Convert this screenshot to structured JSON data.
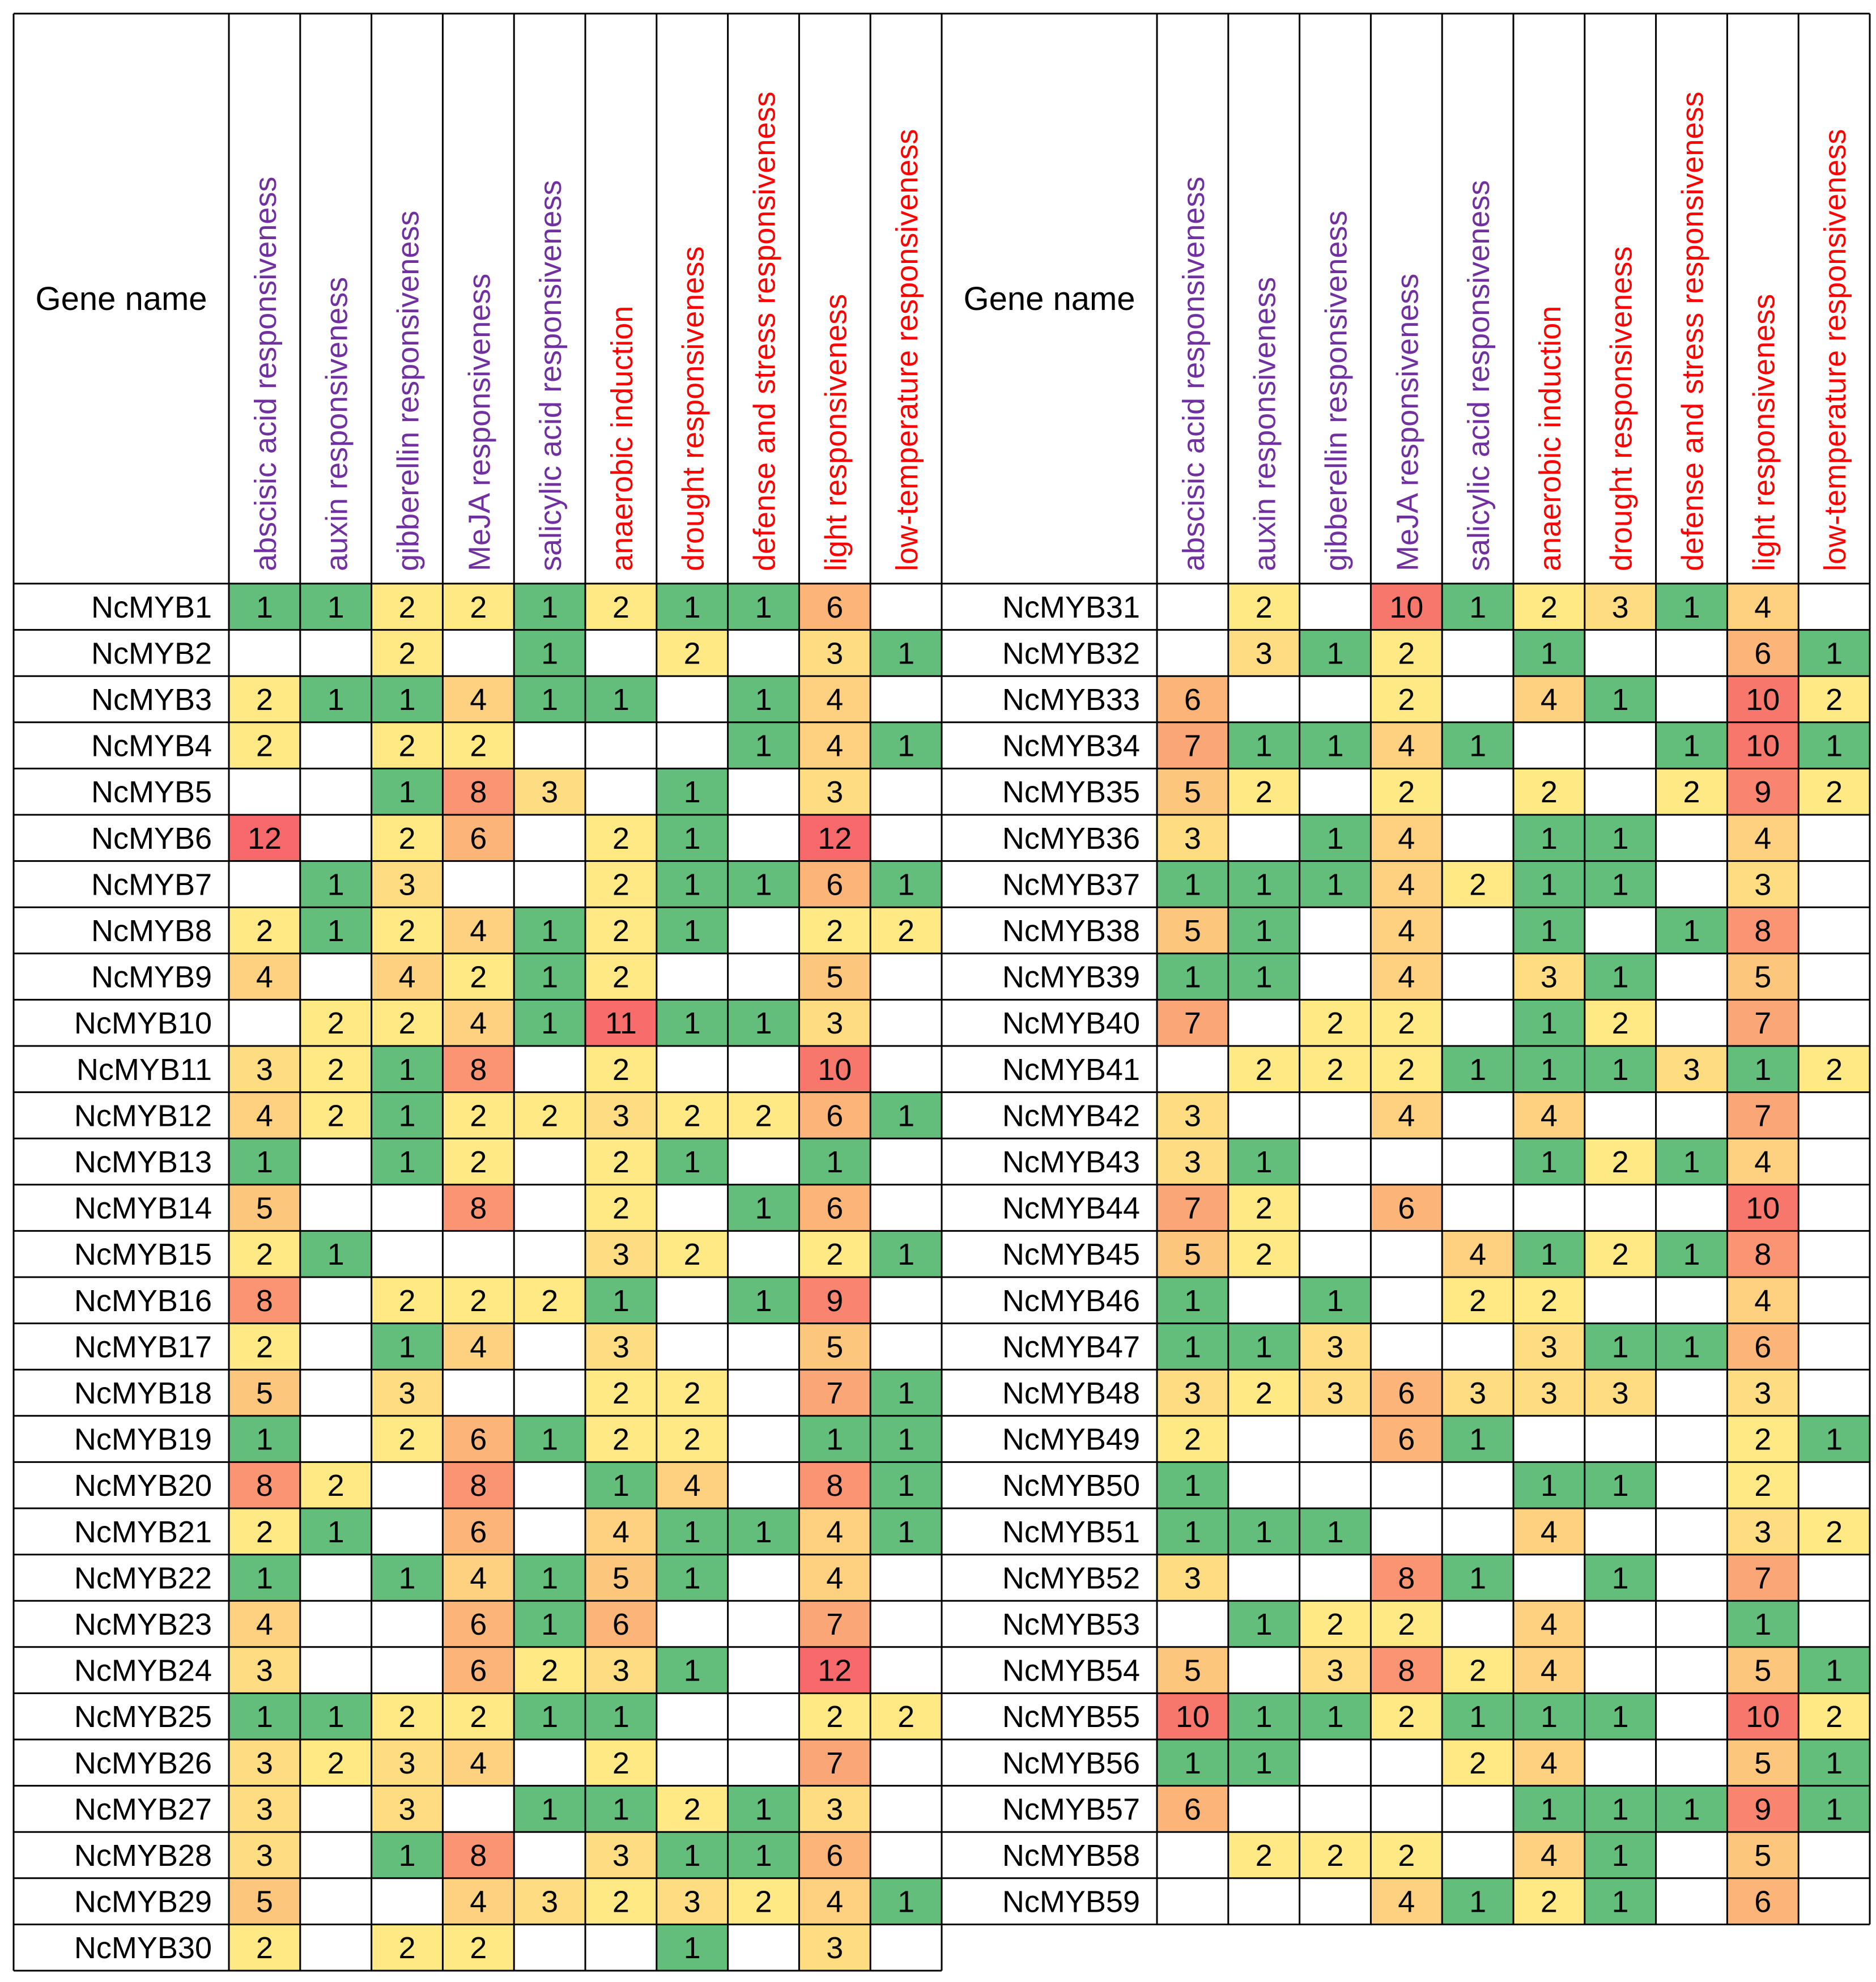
{
  "chart_data": {
    "type": "heatmap",
    "gene_header": "Gene name",
    "columns": [
      {
        "label": "abscisic acid responsiveness",
        "group": "hormone"
      },
      {
        "label": "auxin responsiveness",
        "group": "hormone"
      },
      {
        "label": "gibberellin responsiveness",
        "group": "hormone"
      },
      {
        "label": "MeJA responsiveness",
        "group": "hormone"
      },
      {
        "label": "salicylic acid responsiveness",
        "group": "hormone"
      },
      {
        "label": "anaerobic induction",
        "group": "stress"
      },
      {
        "label": "drought responsiveness",
        "group": "stress"
      },
      {
        "label": "defense and stress responsiveness",
        "group": "stress"
      },
      {
        "label": "light responsiveness",
        "group": "stress"
      },
      {
        "label": "low-temperature responsiveness",
        "group": "stress"
      }
    ],
    "rows": [
      {
        "gene": "NcMYB1",
        "values": [
          1,
          1,
          2,
          2,
          1,
          2,
          1,
          1,
          6,
          null
        ]
      },
      {
        "gene": "NcMYB2",
        "values": [
          null,
          null,
          2,
          null,
          1,
          null,
          2,
          null,
          3,
          1
        ]
      },
      {
        "gene": "NcMYB3",
        "values": [
          2,
          1,
          1,
          4,
          1,
          1,
          null,
          1,
          4,
          null
        ]
      },
      {
        "gene": "NcMYB4",
        "values": [
          2,
          null,
          2,
          2,
          null,
          null,
          null,
          1,
          4,
          1
        ]
      },
      {
        "gene": "NcMYB5",
        "values": [
          null,
          null,
          1,
          8,
          3,
          null,
          1,
          null,
          3,
          null
        ]
      },
      {
        "gene": "NcMYB6",
        "values": [
          12,
          null,
          2,
          6,
          null,
          2,
          1,
          null,
          12,
          null
        ]
      },
      {
        "gene": "NcMYB7",
        "values": [
          null,
          1,
          3,
          null,
          null,
          2,
          1,
          1,
          6,
          1
        ]
      },
      {
        "gene": "NcMYB8",
        "values": [
          2,
          1,
          2,
          4,
          1,
          2,
          1,
          null,
          2,
          2
        ]
      },
      {
        "gene": "NcMYB9",
        "values": [
          4,
          null,
          4,
          2,
          1,
          2,
          null,
          null,
          5,
          null
        ]
      },
      {
        "gene": "NcMYB10",
        "values": [
          null,
          2,
          2,
          4,
          1,
          11,
          1,
          1,
          3,
          null
        ]
      },
      {
        "gene": "NcMYB11",
        "values": [
          3,
          2,
          1,
          8,
          null,
          2,
          null,
          null,
          10,
          null
        ]
      },
      {
        "gene": "NcMYB12",
        "values": [
          4,
          2,
          1,
          2,
          2,
          3,
          2,
          2,
          6,
          1
        ]
      },
      {
        "gene": "NcMYB13",
        "values": [
          1,
          null,
          1,
          2,
          null,
          2,
          1,
          null,
          1,
          null
        ]
      },
      {
        "gene": "NcMYB14",
        "values": [
          5,
          null,
          null,
          8,
          null,
          2,
          null,
          1,
          6,
          null
        ]
      },
      {
        "gene": "NcMYB15",
        "values": [
          2,
          1,
          null,
          null,
          null,
          3,
          2,
          null,
          2,
          1
        ]
      },
      {
        "gene": "NcMYB16",
        "values": [
          8,
          null,
          2,
          2,
          2,
          1,
          null,
          1,
          9,
          null
        ]
      },
      {
        "gene": "NcMYB17",
        "values": [
          2,
          null,
          1,
          4,
          null,
          3,
          null,
          null,
          5,
          null
        ]
      },
      {
        "gene": "NcMYB18",
        "values": [
          5,
          null,
          3,
          null,
          null,
          2,
          2,
          null,
          7,
          1
        ]
      },
      {
        "gene": "NcMYB19",
        "values": [
          1,
          null,
          2,
          6,
          1,
          2,
          2,
          null,
          1,
          1
        ]
      },
      {
        "gene": "NcMYB20",
        "values": [
          8,
          2,
          null,
          8,
          null,
          1,
          4,
          null,
          8,
          1
        ]
      },
      {
        "gene": "NcMYB21",
        "values": [
          2,
          1,
          null,
          6,
          null,
          4,
          1,
          1,
          4,
          1
        ]
      },
      {
        "gene": "NcMYB22",
        "values": [
          1,
          null,
          1,
          4,
          1,
          5,
          1,
          null,
          4,
          null
        ]
      },
      {
        "gene": "NcMYB23",
        "values": [
          4,
          null,
          null,
          6,
          1,
          6,
          null,
          null,
          7,
          null
        ]
      },
      {
        "gene": "NcMYB24",
        "values": [
          3,
          null,
          null,
          6,
          2,
          3,
          1,
          null,
          12,
          null
        ]
      },
      {
        "gene": "NcMYB25",
        "values": [
          1,
          1,
          2,
          2,
          1,
          1,
          null,
          null,
          2,
          2
        ]
      },
      {
        "gene": "NcMYB26",
        "values": [
          3,
          2,
          3,
          4,
          null,
          2,
          null,
          null,
          7,
          null
        ]
      },
      {
        "gene": "NcMYB27",
        "values": [
          3,
          null,
          3,
          null,
          1,
          1,
          2,
          1,
          3,
          null
        ]
      },
      {
        "gene": "NcMYB28",
        "values": [
          3,
          null,
          1,
          8,
          null,
          3,
          1,
          1,
          6,
          null
        ]
      },
      {
        "gene": "NcMYB29",
        "values": [
          5,
          null,
          null,
          4,
          3,
          2,
          3,
          2,
          4,
          1
        ]
      },
      {
        "gene": "NcMYB30",
        "values": [
          2,
          null,
          2,
          2,
          null,
          null,
          1,
          null,
          3,
          null
        ]
      },
      {
        "gene": "NcMYB31",
        "values": [
          null,
          2,
          null,
          10,
          1,
          2,
          3,
          1,
          4,
          null
        ]
      },
      {
        "gene": "NcMYB32",
        "values": [
          null,
          3,
          1,
          2,
          null,
          1,
          null,
          null,
          6,
          1
        ]
      },
      {
        "gene": "NcMYB33",
        "values": [
          6,
          null,
          null,
          2,
          null,
          4,
          1,
          null,
          10,
          2
        ]
      },
      {
        "gene": "NcMYB34",
        "values": [
          7,
          1,
          1,
          4,
          1,
          null,
          null,
          1,
          10,
          1
        ]
      },
      {
        "gene": "NcMYB35",
        "values": [
          5,
          2,
          null,
          2,
          null,
          2,
          null,
          2,
          9,
          2
        ]
      },
      {
        "gene": "NcMYB36",
        "values": [
          3,
          null,
          1,
          4,
          null,
          1,
          1,
          null,
          4,
          null
        ]
      },
      {
        "gene": "NcMYB37",
        "values": [
          1,
          1,
          1,
          4,
          2,
          1,
          1,
          null,
          3,
          null
        ]
      },
      {
        "gene": "NcMYB38",
        "values": [
          5,
          1,
          null,
          4,
          null,
          1,
          null,
          1,
          8,
          null
        ]
      },
      {
        "gene": "NcMYB39",
        "values": [
          1,
          1,
          null,
          4,
          null,
          3,
          1,
          null,
          5,
          null
        ]
      },
      {
        "gene": "NcMYB40",
        "values": [
          7,
          null,
          2,
          2,
          null,
          1,
          2,
          null,
          7,
          null
        ]
      },
      {
        "gene": "NcMYB41",
        "values": [
          null,
          2,
          2,
          2,
          1,
          1,
          1,
          3,
          1,
          2
        ]
      },
      {
        "gene": "NcMYB42",
        "values": [
          3,
          null,
          null,
          4,
          null,
          4,
          null,
          null,
          7,
          null
        ]
      },
      {
        "gene": "NcMYB43",
        "values": [
          3,
          1,
          null,
          null,
          null,
          1,
          2,
          1,
          4,
          null
        ]
      },
      {
        "gene": "NcMYB44",
        "values": [
          7,
          2,
          null,
          6,
          null,
          null,
          null,
          null,
          10,
          null
        ]
      },
      {
        "gene": "NcMYB45",
        "values": [
          5,
          2,
          null,
          null,
          4,
          1,
          2,
          1,
          8,
          null
        ]
      },
      {
        "gene": "NcMYB46",
        "values": [
          1,
          null,
          1,
          null,
          2,
          2,
          null,
          null,
          4,
          null
        ]
      },
      {
        "gene": "NcMYB47",
        "values": [
          1,
          1,
          3,
          null,
          null,
          3,
          1,
          1,
          6,
          null
        ]
      },
      {
        "gene": "NcMYB48",
        "values": [
          3,
          2,
          3,
          6,
          3,
          3,
          3,
          null,
          3,
          null
        ]
      },
      {
        "gene": "NcMYB49",
        "values": [
          2,
          null,
          null,
          6,
          1,
          null,
          null,
          null,
          2,
          1
        ]
      },
      {
        "gene": "NcMYB50",
        "values": [
          1,
          null,
          null,
          null,
          null,
          1,
          1,
          null,
          2,
          null
        ]
      },
      {
        "gene": "NcMYB51",
        "values": [
          1,
          1,
          1,
          null,
          null,
          4,
          null,
          null,
          3,
          2
        ]
      },
      {
        "gene": "NcMYB52",
        "values": [
          3,
          null,
          null,
          8,
          1,
          null,
          1,
          null,
          7,
          null
        ]
      },
      {
        "gene": "NcMYB53",
        "values": [
          null,
          1,
          2,
          2,
          null,
          4,
          null,
          null,
          1,
          null
        ]
      },
      {
        "gene": "NcMYB54",
        "values": [
          5,
          null,
          3,
          8,
          2,
          4,
          null,
          null,
          5,
          1
        ]
      },
      {
        "gene": "NcMYB55",
        "values": [
          10,
          1,
          1,
          2,
          1,
          1,
          1,
          null,
          10,
          2
        ]
      },
      {
        "gene": "NcMYB56",
        "values": [
          1,
          1,
          null,
          null,
          2,
          4,
          null,
          null,
          5,
          1
        ]
      },
      {
        "gene": "NcMYB57",
        "values": [
          6,
          null,
          null,
          null,
          null,
          1,
          1,
          1,
          9,
          1
        ]
      },
      {
        "gene": "NcMYB58",
        "values": [
          null,
          2,
          2,
          2,
          null,
          4,
          1,
          null,
          5,
          null
        ]
      },
      {
        "gene": "NcMYB59",
        "values": [
          null,
          null,
          null,
          4,
          1,
          2,
          1,
          null,
          6,
          null
        ]
      }
    ],
    "panel_split": 30,
    "color_scale": {
      "stops": [
        {
          "value": 1,
          "color": "#63be7b"
        },
        {
          "value": 2,
          "color": "#ffe985"
        },
        {
          "value": 3,
          "color": "#fedc81"
        },
        {
          "value": 4,
          "color": "#fdd17f"
        },
        {
          "value": 5,
          "color": "#fcc67c"
        },
        {
          "value": 6,
          "color": "#fbb579"
        },
        {
          "value": 7,
          "color": "#fba677"
        },
        {
          "value": 8,
          "color": "#fa9473"
        },
        {
          "value": 9,
          "color": "#f9846f"
        },
        {
          "value": 10,
          "color": "#f8776d"
        },
        {
          "value": 11,
          "color": "#f86d6b"
        },
        {
          "value": 12,
          "color": "#f8696b"
        }
      ],
      "empty_color": "#ffffff"
    },
    "label_colors": {
      "hormone": "#7030a0",
      "stress": "#ff0000",
      "gene": "#000000"
    }
  }
}
